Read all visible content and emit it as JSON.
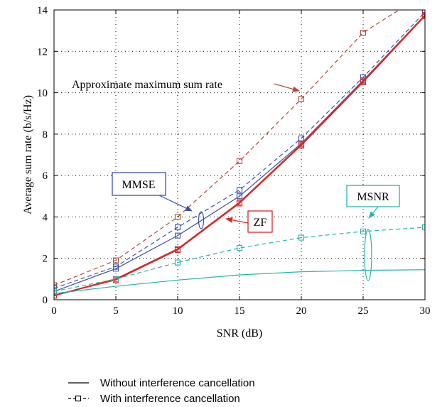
{
  "chart_data": {
    "type": "line",
    "title": "",
    "xlabel": "SNR (dB)",
    "ylabel": "Average sum rate (b/s/Hz)",
    "xlim": [
      0,
      30
    ],
    "ylim": [
      0,
      14
    ],
    "xticks": [
      0,
      5,
      10,
      15,
      20,
      25,
      30
    ],
    "yticks": [
      0,
      2,
      4,
      6,
      8,
      10,
      12,
      14
    ],
    "grid": true,
    "x": [
      0,
      5,
      10,
      15,
      20,
      25,
      30
    ],
    "colors": {
      "max": "#b5473a",
      "mmse": "#3a52a8",
      "zf": "#d42a2a",
      "msnr": "#26b5ad"
    },
    "series": [
      {
        "group": "max",
        "style": "dashed",
        "marker": "square",
        "values": [
          0.7,
          1.9,
          4.0,
          6.7,
          9.7,
          12.9,
          14.8
        ]
      },
      {
        "group": "mmse",
        "style": "dashed",
        "marker": "square",
        "values": [
          0.55,
          1.6,
          3.5,
          5.3,
          7.8,
          10.75,
          13.9
        ]
      },
      {
        "group": "mmse",
        "style": "solid",
        "marker": "square",
        "values": [
          0.4,
          1.5,
          3.1,
          5.0,
          7.55,
          10.6,
          13.75
        ]
      },
      {
        "group": "zf",
        "style": "solid",
        "marker": "square",
        "values": [
          0.2,
          1.0,
          2.45,
          4.7,
          7.5,
          10.55,
          13.75
        ]
      },
      {
        "group": "zf",
        "style": "solid-thin",
        "marker": "square",
        "values": [
          0.2,
          0.95,
          2.4,
          4.65,
          7.45,
          10.5,
          13.7
        ]
      },
      {
        "group": "msnr",
        "style": "dashed",
        "marker": "square",
        "values": [
          0.4,
          1.0,
          1.8,
          2.5,
          3.0,
          3.3,
          3.5
        ]
      },
      {
        "group": "msnr",
        "style": "solid",
        "marker": "none",
        "values": [
          0.3,
          0.65,
          0.95,
          1.2,
          1.35,
          1.42,
          1.45
        ]
      }
    ],
    "annotations": {
      "max_label": "Approximate maximum sum rate",
      "mmse_label": "MMSE",
      "zf_label": "ZF",
      "msnr_label": "MSNR"
    },
    "legend": [
      {
        "label": "Without interference cancellation",
        "style": "solid"
      },
      {
        "label": "With interference cancellation",
        "style": "dashed-square"
      }
    ]
  }
}
